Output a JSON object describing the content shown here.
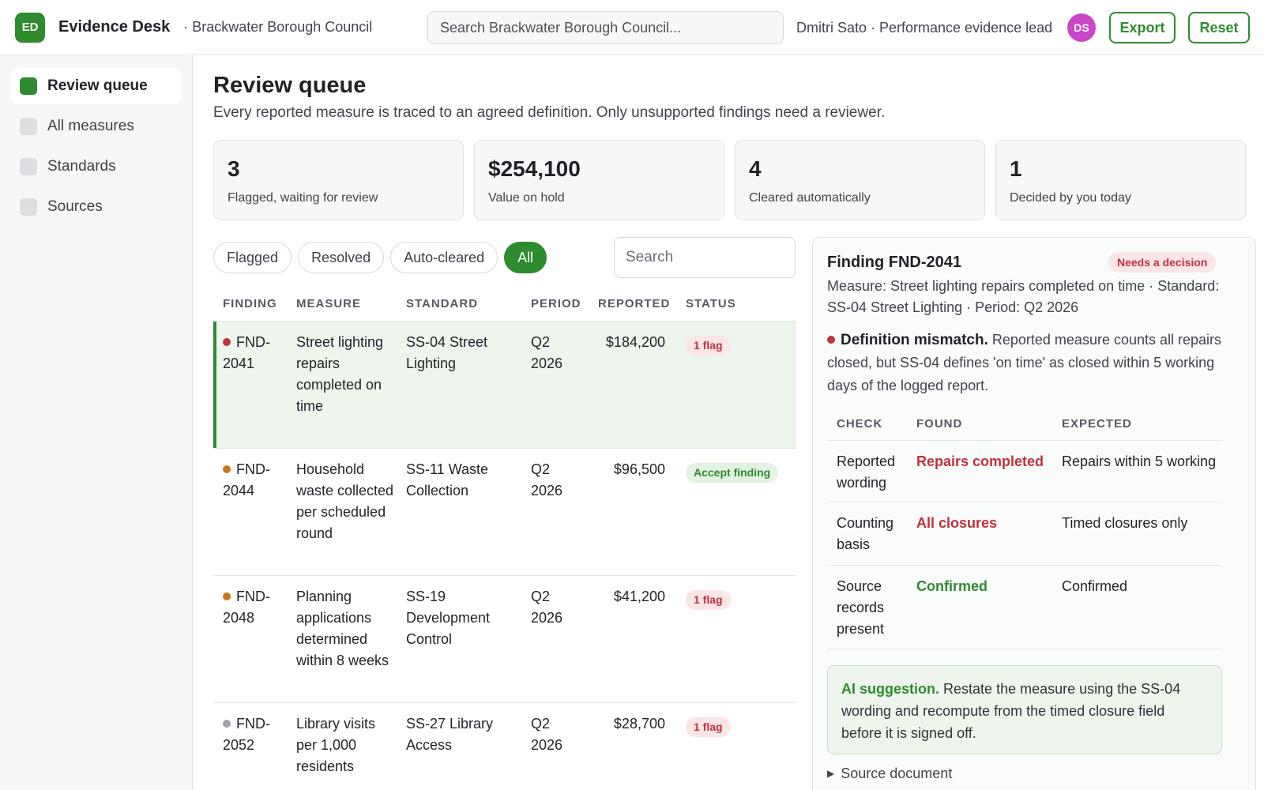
{
  "app": {
    "logo": "ED",
    "title": "Evidence Desk",
    "org": "· Brackwater Borough Council",
    "search_placeholder": "Search Brackwater Borough Council...",
    "user": "Dmitri Sato · Performance evidence lead",
    "avatar": "DS",
    "export_label": "Export",
    "reset_label": "Reset",
    "accent": "#2e8b2e"
  },
  "sidebar": {
    "items": [
      {
        "label": "Review queue",
        "active": true
      },
      {
        "label": "All measures",
        "active": false
      },
      {
        "label": "Standards",
        "active": false
      },
      {
        "label": "Sources",
        "active": false
      }
    ]
  },
  "page": {
    "title": "Review queue",
    "subtitle": "Every reported measure is traced to an agreed definition. Only unsupported findings need a reviewer."
  },
  "stats": [
    {
      "value": "3",
      "label": "Flagged, waiting for review"
    },
    {
      "value": "$254,100",
      "label": "Value on hold"
    },
    {
      "value": "4",
      "label": "Cleared automatically"
    },
    {
      "value": "1",
      "label": "Decided by you today"
    }
  ],
  "filters": {
    "chips": [
      "Flagged",
      "Resolved",
      "Auto-cleared",
      "All"
    ],
    "active": "All",
    "search_placeholder": "Search"
  },
  "table": {
    "headers": [
      "FINDING",
      "MEASURE",
      "STANDARD",
      "PERIOD",
      "REPORTED",
      "STATUS"
    ],
    "rows": [
      {
        "finding": "FND-2041",
        "measure": "Street lighting repairs completed on time",
        "standard": "SS-04 Street Lighting",
        "period": "Q2 2026",
        "reported": "$184,200",
        "status": "1 flag",
        "status_kind": "flag",
        "dot_color": "#c0323c",
        "selected": true
      },
      {
        "finding": "FND-2044",
        "measure": "Household waste collected per scheduled round",
        "standard": "SS-11 Waste Collection",
        "period": "Q2 2026",
        "reported": "$96,500",
        "status": "Accept finding",
        "status_kind": "accept",
        "dot_color": "#c8741a",
        "selected": false
      },
      {
        "finding": "FND-2048",
        "measure": "Planning applications determined within 8 weeks",
        "standard": "SS-19 Development Control",
        "period": "Q2 2026",
        "reported": "$41,200",
        "status": "1 flag",
        "status_kind": "flag",
        "dot_color": "#c8741a",
        "selected": false
      },
      {
        "finding": "FND-2052",
        "measure": "Library visits per 1,000 residents",
        "standard": "SS-27 Library Access",
        "period": "Q2 2026",
        "reported": "$28,700",
        "status": "1 flag",
        "status_kind": "flag",
        "dot_color": "#a0a4aa",
        "selected": false
      }
    ]
  },
  "detail": {
    "title": "Finding FND-2041",
    "badge": "Needs a decision",
    "meta": "Measure: Street lighting repairs completed on time · Standard: SS-04 Street Lighting · Period: Q2 2026",
    "mismatch_title": "Definition mismatch.",
    "mismatch_text": "Reported measure counts all repairs closed, but SS-04 defines 'on time' as closed within 5 working days of the logged report.",
    "check_headers": [
      "CHECK",
      "FOUND",
      "EXPECTED"
    ],
    "checks": [
      {
        "check": "Reported wording",
        "found": "Repairs completed",
        "found_kind": "bad",
        "expected": "Repairs within 5 working"
      },
      {
        "check": "Counting basis",
        "found": "All closures",
        "found_kind": "bad",
        "expected": "Timed closures only"
      },
      {
        "check": "Source records present",
        "found": "Confirmed",
        "found_kind": "good",
        "expected": "Confirmed"
      }
    ],
    "ai_title": "AI suggestion.",
    "ai_text": "Restate the measure using the SS-04 wording and recompute from the timed closure field before it is signed off.",
    "source_label": "Source document"
  }
}
